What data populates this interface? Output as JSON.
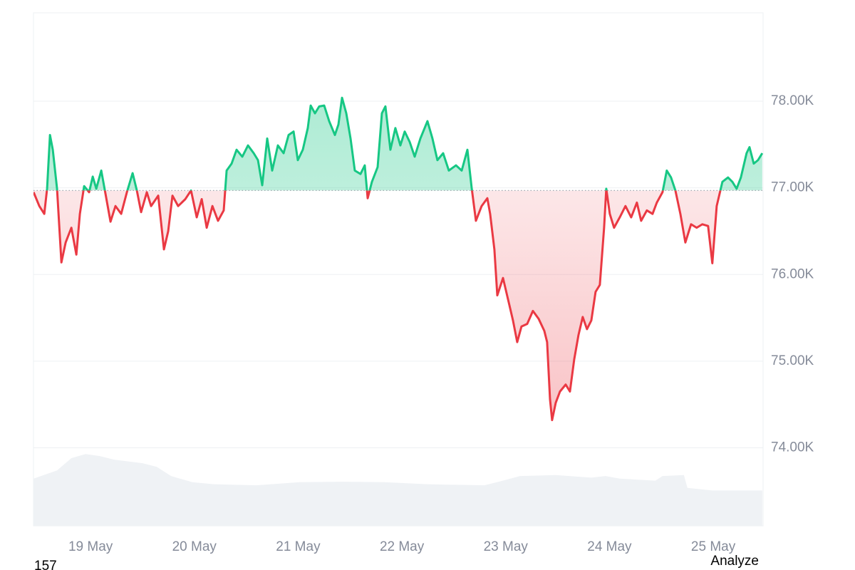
{
  "chart_data": {
    "type": "line",
    "baseline": 76970,
    "xlim": [
      18.45,
      25.48
    ],
    "xticks": [
      {
        "value": 19,
        "label": "19 May"
      },
      {
        "value": 20,
        "label": "20 May"
      },
      {
        "value": 21,
        "label": "21 May"
      },
      {
        "value": 22,
        "label": "22 May"
      },
      {
        "value": 23,
        "label": "23 May"
      },
      {
        "value": 24,
        "label": "24 May"
      },
      {
        "value": 25,
        "label": "25 May"
      }
    ],
    "ylim": [
      73100,
      79020
    ],
    "yticks": [
      {
        "value": 74000,
        "label": "74.00K"
      },
      {
        "value": 75000,
        "label": "75.00K"
      },
      {
        "value": 76000,
        "label": "76.00K"
      },
      {
        "value": 77000,
        "label": "77.00K"
      },
      {
        "value": 78000,
        "label": "78.00K"
      }
    ],
    "y2lim": [
      0,
      100
    ],
    "grid": true,
    "series": [
      {
        "color_up": "#16c784",
        "color_down": "#ea3943",
        "x": [
          18.451,
          18.506,
          18.554,
          18.581,
          18.609,
          18.636,
          18.677,
          18.719,
          18.76,
          18.815,
          18.863,
          18.897,
          18.938,
          18.986,
          19.021,
          19.055,
          19.103,
          19.144,
          19.192,
          19.24,
          19.295,
          19.35,
          19.405,
          19.446,
          19.487,
          19.542,
          19.583,
          19.652,
          19.707,
          19.748,
          19.789,
          19.844,
          19.913,
          19.968,
          20.023,
          20.071,
          20.119,
          20.174,
          20.228,
          20.283,
          20.311,
          20.359,
          20.407,
          20.462,
          20.517,
          20.572,
          20.613,
          20.654,
          20.702,
          20.75,
          20.805,
          20.86,
          20.908,
          20.956,
          20.997,
          21.045,
          21.093,
          21.121,
          21.162,
          21.203,
          21.251,
          21.299,
          21.354,
          21.388,
          21.423,
          21.464,
          21.505,
          21.546,
          21.601,
          21.642,
          21.67,
          21.711,
          21.766,
          21.807,
          21.841,
          21.889,
          21.937,
          21.985,
          22.027,
          22.075,
          22.123,
          22.178,
          22.246,
          22.294,
          22.342,
          22.397,
          22.452,
          22.521,
          22.576,
          22.631,
          22.672,
          22.713,
          22.768,
          22.823,
          22.85,
          22.891,
          22.919,
          22.974,
          23.029,
          23.07,
          23.111,
          23.152,
          23.207,
          23.262,
          23.317,
          23.372,
          23.399,
          23.427,
          23.447,
          23.482,
          23.523,
          23.578,
          23.619,
          23.66,
          23.701,
          23.742,
          23.783,
          23.825,
          23.866,
          23.907,
          23.948,
          23.969,
          24.003,
          24.044,
          24.099,
          24.154,
          24.209,
          24.264,
          24.305,
          24.36,
          24.415,
          24.456,
          24.511,
          24.552,
          24.593,
          24.635,
          24.683,
          24.731,
          24.786,
          24.84,
          24.895,
          24.95,
          24.991,
          25.033,
          25.088,
          25.142,
          25.184,
          25.225,
          25.266,
          25.321,
          25.349,
          25.39,
          25.431,
          25.472
        ],
        "values": [
          76950,
          76790,
          76700,
          76990,
          77610,
          77440,
          76990,
          76140,
          76370,
          76540,
          76230,
          76700,
          77020,
          76950,
          77130,
          76990,
          77200,
          76930,
          76610,
          76790,
          76700,
          76950,
          77170,
          76970,
          76720,
          76950,
          76790,
          76910,
          76290,
          76500,
          76910,
          76790,
          76870,
          76970,
          76660,
          76870,
          76540,
          76790,
          76620,
          76740,
          77200,
          77280,
          77440,
          77360,
          77490,
          77400,
          77320,
          77030,
          77570,
          77200,
          77490,
          77400,
          77610,
          77650,
          77320,
          77440,
          77690,
          77950,
          77860,
          77940,
          77950,
          77770,
          77610,
          77730,
          78040,
          77860,
          77570,
          77200,
          77160,
          77260,
          76880,
          77070,
          77240,
          77860,
          77940,
          77440,
          77690,
          77490,
          77650,
          77530,
          77360,
          77570,
          77770,
          77570,
          77320,
          77400,
          77200,
          77260,
          77200,
          77440,
          77000,
          76620,
          76790,
          76880,
          76700,
          76290,
          75760,
          75960,
          75680,
          75470,
          75220,
          75400,
          75430,
          75580,
          75490,
          75350,
          75220,
          74560,
          74320,
          74520,
          74650,
          74730,
          74650,
          75020,
          75300,
          75510,
          75370,
          75470,
          75800,
          75880,
          76540,
          76990,
          76700,
          76540,
          76660,
          76790,
          76660,
          76830,
          76620,
          76740,
          76700,
          76830,
          76950,
          77200,
          77120,
          76970,
          76700,
          76370,
          76580,
          76540,
          76580,
          76560,
          76130,
          76790,
          77070,
          77120,
          77070,
          76990,
          77120,
          77400,
          77470,
          77280,
          77320,
          77400
        ]
      },
      {
        "color": "#eff2f5",
        "axis": "y2",
        "x": [
          18.451,
          18.677,
          18.815,
          18.952,
          19.089,
          19.226,
          19.501,
          19.638,
          19.776,
          19.981,
          20.187,
          20.599,
          21.011,
          21.423,
          21.834,
          22.246,
          22.795,
          22.933,
          23.138,
          23.482,
          23.825,
          23.962,
          24.099,
          24.442,
          24.511,
          24.717,
          24.751,
          24.991,
          25.472
        ],
        "values": [
          9.2,
          10.8,
          13.2,
          14.0,
          13.6,
          12.9,
          12.2,
          11.5,
          9.7,
          8.5,
          8.1,
          7.9,
          8.5,
          8.6,
          8.5,
          8.1,
          7.9,
          8.6,
          9.7,
          9.9,
          9.4,
          9.7,
          9.2,
          8.8,
          9.7,
          9.9,
          7.4,
          6.9,
          6.9
        ]
      }
    ],
    "footer_left": "157",
    "footer_right": "Analyze"
  }
}
